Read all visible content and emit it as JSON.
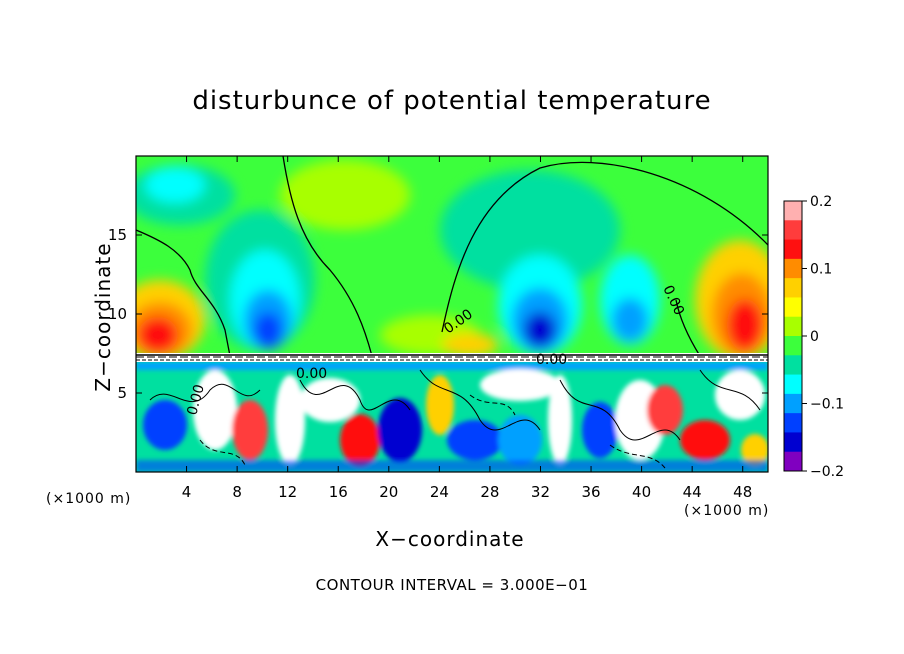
{
  "chart_data": {
    "type": "heatmap",
    "title": "disturbunce of potential temperature",
    "xlabel": "X−coordinate",
    "ylabel": "Z−coordinate",
    "x_unit": "(×1000 m)",
    "xlim": [
      0,
      50
    ],
    "ylim": [
      0,
      20
    ],
    "x_ticks": [
      4,
      8,
      12,
      16,
      20,
      24,
      28,
      32,
      36,
      40,
      44,
      48
    ],
    "y_ticks": [
      5,
      10,
      15
    ],
    "colorbar": {
      "range": [
        -0.2,
        0.2
      ],
      "tick_values": [
        0.2,
        0.1,
        0,
        -0.1,
        -0.2
      ],
      "tick_labels": [
        "0.2",
        "0.1",
        "0",
        "−0.1",
        "−0.2"
      ],
      "colors": [
        "#ffb0b0",
        "#ff3c3c",
        "#ff1010",
        "#ff8c00",
        "#ffd000",
        "#ffff00",
        "#a8ff00",
        "#3cff3c",
        "#00e0a0",
        "#00ffff",
        "#00a0ff",
        "#0040ff",
        "#0000d0",
        "#8000c0"
      ]
    },
    "contour_labels": [
      "0.00",
      "0.00",
      "0.00",
      "0.00",
      "0.00"
    ],
    "contour_interval": "CONTOUR INTERVAL = 3.000E−01"
  }
}
